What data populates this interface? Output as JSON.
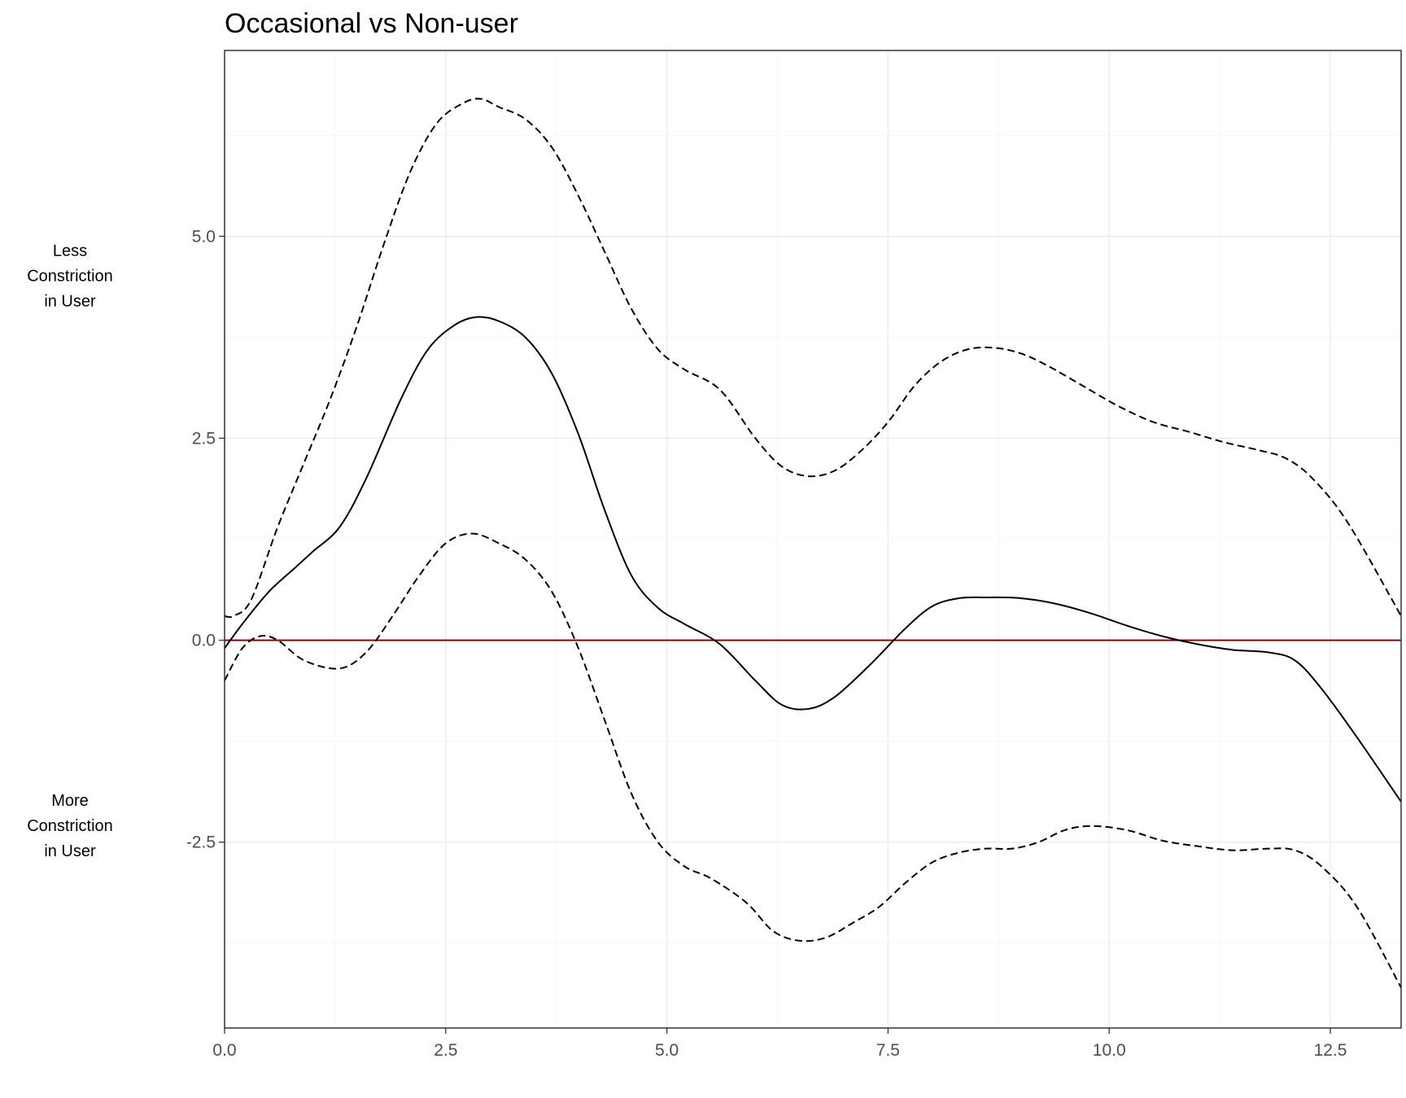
{
  "chart_data": {
    "type": "line",
    "title": "Occasional vs Non-user",
    "xlabel": "",
    "ylabel": "",
    "xlim": [
      0,
      13.3
    ],
    "ylim": [
      -4.8,
      7.3
    ],
    "x_ticks": [
      "0.0",
      "2.5",
      "5.0",
      "7.5",
      "10.0",
      "12.5"
    ],
    "y_ticks": [
      "-2.5",
      "0.0",
      "2.5",
      "5.0"
    ],
    "x_tick_values": [
      0,
      2.5,
      5,
      7.5,
      10,
      12.5
    ],
    "y_tick_values": [
      -2.5,
      0,
      2.5,
      5
    ],
    "grid": true,
    "reference_line": {
      "y": 0,
      "color": "#8b0000"
    },
    "annotations": {
      "upper": [
        "Less",
        "Constriction",
        "in User"
      ],
      "lower": [
        "More",
        "Constriction",
        "in User"
      ]
    },
    "series": [
      {
        "style": "solid",
        "color": "#000000",
        "x": [
          0,
          0.2,
          0.5,
          0.8,
          1.0,
          1.3,
          1.6,
          2.0,
          2.3,
          2.6,
          2.85,
          3.1,
          3.4,
          3.7,
          4.0,
          4.3,
          4.6,
          4.9,
          5.2,
          5.6,
          6.0,
          6.3,
          6.6,
          6.9,
          7.3,
          7.7,
          8.0,
          8.3,
          8.6,
          9.0,
          9.4,
          9.8,
          10.2,
          10.6,
          11.0,
          11.4,
          11.8,
          12.1,
          12.4,
          12.8,
          13.3
        ],
        "y": [
          -0.1,
          0.2,
          0.6,
          0.9,
          1.1,
          1.4,
          2.0,
          3.0,
          3.6,
          3.9,
          4.0,
          3.95,
          3.75,
          3.3,
          2.55,
          1.6,
          0.8,
          0.4,
          0.2,
          -0.05,
          -0.5,
          -0.8,
          -0.85,
          -0.7,
          -0.3,
          0.15,
          0.42,
          0.52,
          0.53,
          0.52,
          0.45,
          0.33,
          0.18,
          0.05,
          -0.05,
          -0.12,
          -0.15,
          -0.25,
          -0.6,
          -1.2,
          -2.0
        ]
      },
      {
        "style": "dashed",
        "color": "#000000",
        "x": [
          0,
          0.1,
          0.3,
          0.6,
          0.9,
          1.2,
          1.5,
          1.8,
          2.1,
          2.4,
          2.7,
          2.9,
          3.1,
          3.4,
          3.7,
          4.0,
          4.3,
          4.6,
          4.9,
          5.2,
          5.6,
          6.0,
          6.3,
          6.6,
          6.9,
          7.2,
          7.5,
          7.8,
          8.1,
          8.4,
          8.7,
          9.0,
          9.3,
          9.7,
          10.1,
          10.5,
          10.9,
          11.3,
          11.7,
          12.0,
          12.3,
          12.7,
          13.3
        ],
        "y": [
          0.3,
          0.3,
          0.5,
          1.4,
          2.2,
          3.0,
          3.9,
          4.9,
          5.8,
          6.4,
          6.65,
          6.7,
          6.6,
          6.45,
          6.1,
          5.5,
          4.8,
          4.1,
          3.6,
          3.35,
          3.1,
          2.5,
          2.15,
          2.03,
          2.1,
          2.35,
          2.7,
          3.15,
          3.45,
          3.6,
          3.62,
          3.55,
          3.4,
          3.15,
          2.9,
          2.7,
          2.58,
          2.45,
          2.35,
          2.25,
          2.0,
          1.45,
          0.3
        ]
      },
      {
        "style": "dashed",
        "color": "#000000",
        "x": [
          0,
          0.2,
          0.4,
          0.6,
          0.9,
          1.3,
          1.6,
          1.9,
          2.2,
          2.5,
          2.8,
          3.1,
          3.4,
          3.7,
          4.0,
          4.3,
          4.6,
          4.9,
          5.2,
          5.5,
          5.9,
          6.2,
          6.5,
          6.8,
          7.1,
          7.4,
          7.7,
          8.0,
          8.3,
          8.6,
          8.9,
          9.2,
          9.5,
          9.8,
          10.2,
          10.6,
          11.0,
          11.4,
          11.8,
          12.1,
          12.4,
          12.8,
          13.3
        ],
        "y": [
          -0.5,
          -0.1,
          0.05,
          0.0,
          -0.25,
          -0.35,
          -0.15,
          0.3,
          0.8,
          1.2,
          1.32,
          1.2,
          1.0,
          0.6,
          -0.1,
          -1.0,
          -1.9,
          -2.5,
          -2.8,
          -2.95,
          -3.25,
          -3.6,
          -3.72,
          -3.68,
          -3.5,
          -3.3,
          -3.0,
          -2.75,
          -2.63,
          -2.58,
          -2.58,
          -2.5,
          -2.35,
          -2.3,
          -2.35,
          -2.48,
          -2.55,
          -2.6,
          -2.58,
          -2.6,
          -2.8,
          -3.3,
          -4.3
        ]
      }
    ]
  }
}
